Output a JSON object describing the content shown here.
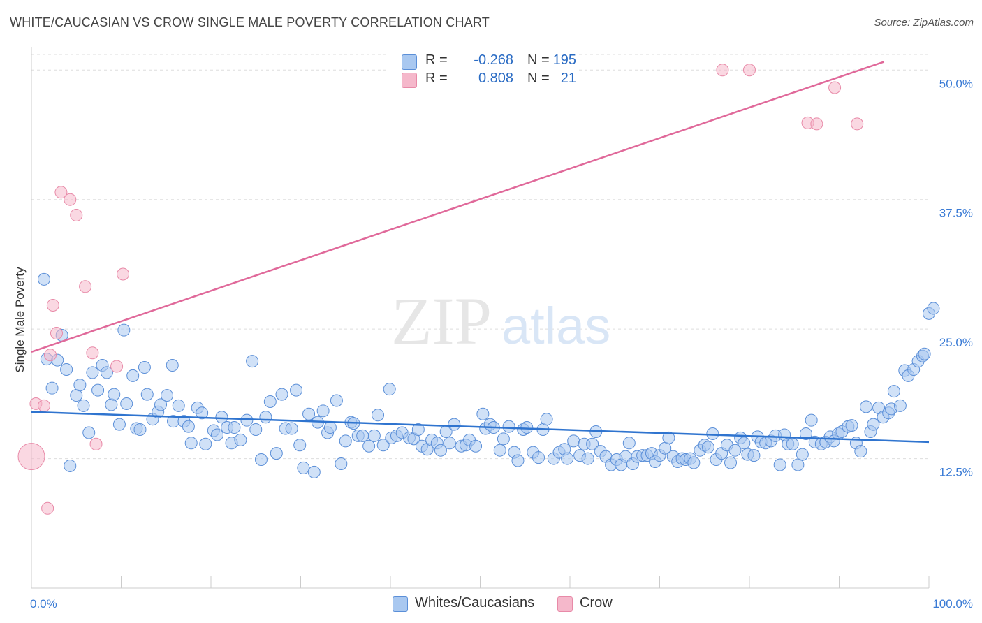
{
  "title": "WHITE/CAUCASIAN VS CROW SINGLE MALE POVERTY CORRELATION CHART",
  "source": "Source: ZipAtlas.com",
  "watermark": {
    "zip": "ZIP",
    "atlas": "atlas"
  },
  "colors": {
    "blue_fill": "#a9c8f0",
    "blue_stroke": "#5b8fd8",
    "blue_line": "#2f74cf",
    "pink_fill": "#f5b8cb",
    "pink_stroke": "#e88aa8",
    "pink_line": "#e0699a",
    "tick_text": "#3a7bd5",
    "grid": "#dddddd"
  },
  "legend": {
    "rows": [
      {
        "swatch": "blue",
        "r_label": "R =",
        "r_value": "-0.268",
        "n_label": "N =",
        "n_value": "195"
      },
      {
        "swatch": "pink",
        "r_label": "R =",
        "r_value": "0.808",
        "n_label": "N =",
        "n_value": "21"
      }
    ]
  },
  "bottom_legend": [
    {
      "swatch": "blue",
      "label": "Whites/Caucasians"
    },
    {
      "swatch": "pink",
      "label": "Crow"
    }
  ],
  "chart_data": {
    "type": "scatter",
    "title": "WHITE/CAUCASIAN VS CROW SINGLE MALE POVERTY CORRELATION CHART",
    "xlabel": "",
    "ylabel": "Single Male Poverty",
    "xlim": [
      0,
      100
    ],
    "ylim": [
      0,
      51.5
    ],
    "x_tick_labels": [
      {
        "value": 0,
        "label": "0.0%"
      },
      {
        "value": 100,
        "label": "100.0%"
      }
    ],
    "y_tick_labels": [
      {
        "value": 12.5,
        "label": "12.5%"
      },
      {
        "value": 25,
        "label": "25.0%"
      },
      {
        "value": 37.5,
        "label": "37.5%"
      },
      {
        "value": 50,
        "label": "50.0%"
      }
    ],
    "grid": true,
    "legend_position": "top-center",
    "series": [
      {
        "name": "Whites/Caucasians",
        "color": "#a9c8f0",
        "trend": {
          "x": [
            0,
            100
          ],
          "y": [
            17.0,
            14.1
          ]
        },
        "points": [
          [
            1.4,
            29.8
          ],
          [
            1.7,
            22.1
          ],
          [
            2.3,
            19.3
          ],
          [
            2.9,
            22.0
          ],
          [
            3.4,
            24.4
          ],
          [
            3.9,
            21.1
          ],
          [
            4.3,
            11.8
          ],
          [
            5.0,
            18.6
          ],
          [
            5.4,
            19.6
          ],
          [
            5.8,
            17.6
          ],
          [
            6.4,
            15.0
          ],
          [
            6.8,
            20.8
          ],
          [
            7.4,
            19.1
          ],
          [
            7.9,
            21.5
          ],
          [
            8.4,
            20.8
          ],
          [
            8.9,
            17.7
          ],
          [
            9.2,
            18.7
          ],
          [
            9.8,
            15.8
          ],
          [
            10.3,
            24.9
          ],
          [
            10.6,
            17.8
          ],
          [
            11.3,
            20.5
          ],
          [
            11.7,
            15.4
          ],
          [
            12.1,
            15.3
          ],
          [
            12.6,
            21.3
          ],
          [
            12.9,
            18.7
          ],
          [
            13.5,
            16.3
          ],
          [
            14.1,
            17.0
          ],
          [
            14.4,
            17.7
          ],
          [
            15.1,
            18.6
          ],
          [
            15.7,
            21.5
          ],
          [
            15.8,
            16.1
          ],
          [
            16.4,
            17.6
          ],
          [
            17.0,
            16.1
          ],
          [
            17.5,
            15.6
          ],
          [
            17.8,
            14.0
          ],
          [
            18.5,
            17.4
          ],
          [
            19.0,
            16.9
          ],
          [
            19.4,
            13.9
          ],
          [
            20.3,
            15.2
          ],
          [
            20.7,
            14.8
          ],
          [
            21.2,
            16.5
          ],
          [
            21.8,
            15.5
          ],
          [
            22.3,
            14.0
          ],
          [
            22.6,
            15.5
          ],
          [
            23.3,
            14.3
          ],
          [
            24.0,
            16.2
          ],
          [
            24.6,
            21.9
          ],
          [
            25.0,
            15.3
          ],
          [
            25.6,
            12.4
          ],
          [
            26.1,
            16.5
          ],
          [
            26.6,
            18.0
          ],
          [
            27.3,
            13.0
          ],
          [
            27.9,
            18.7
          ],
          [
            28.3,
            15.4
          ],
          [
            29.0,
            15.4
          ],
          [
            29.5,
            19.1
          ],
          [
            29.9,
            13.8
          ],
          [
            30.3,
            11.6
          ],
          [
            30.9,
            16.8
          ],
          [
            31.5,
            11.2
          ],
          [
            31.9,
            16.0
          ],
          [
            32.5,
            17.1
          ],
          [
            33.0,
            15.0
          ],
          [
            33.3,
            15.5
          ],
          [
            34.0,
            18.1
          ],
          [
            34.5,
            12.0
          ],
          [
            35.0,
            14.2
          ],
          [
            35.6,
            16.0
          ],
          [
            35.9,
            15.9
          ],
          [
            36.4,
            14.7
          ],
          [
            36.9,
            14.7
          ],
          [
            37.6,
            13.7
          ],
          [
            38.2,
            14.7
          ],
          [
            38.6,
            16.7
          ],
          [
            39.2,
            13.8
          ],
          [
            39.9,
            19.2
          ],
          [
            40.1,
            14.5
          ],
          [
            40.7,
            14.7
          ],
          [
            41.3,
            15.0
          ],
          [
            42.1,
            14.5
          ],
          [
            42.6,
            14.4
          ],
          [
            43.1,
            15.3
          ],
          [
            43.5,
            13.7
          ],
          [
            44.1,
            13.4
          ],
          [
            44.6,
            14.3
          ],
          [
            45.2,
            14.0
          ],
          [
            45.6,
            13.3
          ],
          [
            46.2,
            15.1
          ],
          [
            46.6,
            14.0
          ],
          [
            47.1,
            15.8
          ],
          [
            47.9,
            13.7
          ],
          [
            48.4,
            13.8
          ],
          [
            48.8,
            14.3
          ],
          [
            49.5,
            13.7
          ],
          [
            50.3,
            16.8
          ],
          [
            50.6,
            15.4
          ],
          [
            51.1,
            15.8
          ],
          [
            51.5,
            15.5
          ],
          [
            52.2,
            13.3
          ],
          [
            52.6,
            14.4
          ],
          [
            53.2,
            15.6
          ],
          [
            53.8,
            13.1
          ],
          [
            54.2,
            12.3
          ],
          [
            54.8,
            15.3
          ],
          [
            55.2,
            15.5
          ],
          [
            55.9,
            13.1
          ],
          [
            56.5,
            12.6
          ],
          [
            57.0,
            15.3
          ],
          [
            57.4,
            16.3
          ],
          [
            58.2,
            12.5
          ],
          [
            58.8,
            13.1
          ],
          [
            59.4,
            13.4
          ],
          [
            59.7,
            12.5
          ],
          [
            60.4,
            14.2
          ],
          [
            61.1,
            12.8
          ],
          [
            61.6,
            13.9
          ],
          [
            62.0,
            12.5
          ],
          [
            62.5,
            13.9
          ],
          [
            62.9,
            15.1
          ],
          [
            63.4,
            13.2
          ],
          [
            64.0,
            12.7
          ],
          [
            64.6,
            11.9
          ],
          [
            65.2,
            12.4
          ],
          [
            65.7,
            11.9
          ],
          [
            66.2,
            12.7
          ],
          [
            66.6,
            14.0
          ],
          [
            67.0,
            12.0
          ],
          [
            67.5,
            12.7
          ],
          [
            68.1,
            12.8
          ],
          [
            68.6,
            12.8
          ],
          [
            69.1,
            13.0
          ],
          [
            69.5,
            12.2
          ],
          [
            70.0,
            12.8
          ],
          [
            70.6,
            13.5
          ],
          [
            71.0,
            14.5
          ],
          [
            71.5,
            12.7
          ],
          [
            72.0,
            12.2
          ],
          [
            72.5,
            12.5
          ],
          [
            72.9,
            12.4
          ],
          [
            73.4,
            12.5
          ],
          [
            73.8,
            12.1
          ],
          [
            74.5,
            13.3
          ],
          [
            75.0,
            13.8
          ],
          [
            75.4,
            13.6
          ],
          [
            75.9,
            14.9
          ],
          [
            76.3,
            12.4
          ],
          [
            76.9,
            13.0
          ],
          [
            77.5,
            13.8
          ],
          [
            77.9,
            12.1
          ],
          [
            78.4,
            13.3
          ],
          [
            79.0,
            14.5
          ],
          [
            79.4,
            14.0
          ],
          [
            79.8,
            12.9
          ],
          [
            80.5,
            12.8
          ],
          [
            80.9,
            14.6
          ],
          [
            81.3,
            14.1
          ],
          [
            81.8,
            14.0
          ],
          [
            82.4,
            14.2
          ],
          [
            82.9,
            14.7
          ],
          [
            83.4,
            11.9
          ],
          [
            83.9,
            14.8
          ],
          [
            84.3,
            13.9
          ],
          [
            84.8,
            13.9
          ],
          [
            85.4,
            11.9
          ],
          [
            85.9,
            12.9
          ],
          [
            86.3,
            14.9
          ],
          [
            86.9,
            16.2
          ],
          [
            87.3,
            14.1
          ],
          [
            88.0,
            13.9
          ],
          [
            88.5,
            14.1
          ],
          [
            89.0,
            14.6
          ],
          [
            89.4,
            14.2
          ],
          [
            89.9,
            14.9
          ],
          [
            90.3,
            15.1
          ],
          [
            91.0,
            15.6
          ],
          [
            91.4,
            15.7
          ],
          [
            91.9,
            14.0
          ],
          [
            92.4,
            13.2
          ],
          [
            93.0,
            17.5
          ],
          [
            93.5,
            15.1
          ],
          [
            93.8,
            15.8
          ],
          [
            94.4,
            17.4
          ],
          [
            94.9,
            16.5
          ],
          [
            95.5,
            16.9
          ],
          [
            95.8,
            17.3
          ],
          [
            96.1,
            19.0
          ],
          [
            96.8,
            17.6
          ],
          [
            97.3,
            21.0
          ],
          [
            97.7,
            20.5
          ],
          [
            98.3,
            21.1
          ],
          [
            98.8,
            21.9
          ],
          [
            99.3,
            22.4
          ],
          [
            99.5,
            22.6
          ],
          [
            100.0,
            26.5
          ],
          [
            100.5,
            27.0
          ]
        ]
      },
      {
        "name": "Crow",
        "color": "#f5b8cb",
        "trend": {
          "x": [
            0,
            95.0
          ],
          "y": [
            22.8,
            50.8
          ]
        },
        "points": [
          [
            0.0,
            12.7
          ],
          [
            0.5,
            17.8
          ],
          [
            1.4,
            17.6
          ],
          [
            1.8,
            7.7
          ],
          [
            2.1,
            22.5
          ],
          [
            2.4,
            27.3
          ],
          [
            2.8,
            24.6
          ],
          [
            3.3,
            38.2
          ],
          [
            4.3,
            37.5
          ],
          [
            5.0,
            36.0
          ],
          [
            6.0,
            29.1
          ],
          [
            6.8,
            22.7
          ],
          [
            7.2,
            13.9
          ],
          [
            9.5,
            21.4
          ],
          [
            10.2,
            30.3
          ],
          [
            77.0,
            50.0
          ],
          [
            80.0,
            50.0
          ],
          [
            86.5,
            44.9
          ],
          [
            87.5,
            44.8
          ],
          [
            89.5,
            48.3
          ],
          [
            92.0,
            44.8
          ]
        ]
      }
    ]
  }
}
